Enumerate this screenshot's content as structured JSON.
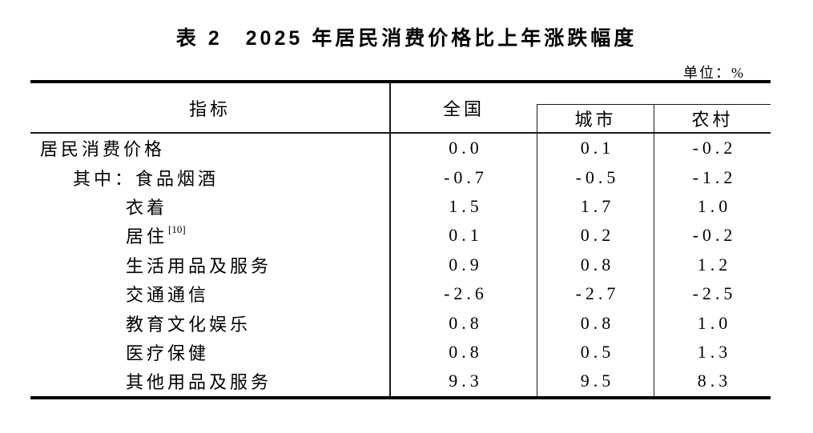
{
  "page": {
    "title": "表 2　2025 年居民消费价格比上年涨跌幅度",
    "unit_label": "单位：%"
  },
  "table": {
    "columns": {
      "indicator": "指标",
      "national": "全国",
      "city": "城市",
      "rural": "农村"
    },
    "rows": [
      {
        "label": "居民消费价格",
        "superscript": "",
        "indent": 0,
        "national": "0.0",
        "city": "0.1",
        "rural": "-0.2"
      },
      {
        "label": "其中：食品烟酒",
        "superscript": "",
        "indent": 1,
        "national": "-0.7",
        "city": "-0.5",
        "rural": "-1.2"
      },
      {
        "label": "衣着",
        "superscript": "",
        "indent": 2,
        "national": "1.5",
        "city": "1.7",
        "rural": "1.0"
      },
      {
        "label": "居住",
        "superscript": "[10]",
        "indent": 2,
        "national": "0.1",
        "city": "0.2",
        "rural": "-0.2"
      },
      {
        "label": "生活用品及服务",
        "superscript": "",
        "indent": 2,
        "national": "0.9",
        "city": "0.8",
        "rural": "1.2"
      },
      {
        "label": "交通通信",
        "superscript": "",
        "indent": 2,
        "national": "-2.6",
        "city": "-2.7",
        "rural": "-2.5"
      },
      {
        "label": "教育文化娱乐",
        "superscript": "",
        "indent": 2,
        "national": "0.8",
        "city": "0.8",
        "rural": "1.0"
      },
      {
        "label": "医疗保健",
        "superscript": "",
        "indent": 2,
        "national": "0.8",
        "city": "0.5",
        "rural": "1.3"
      },
      {
        "label": "其他用品及服务",
        "superscript": "",
        "indent": 2,
        "national": "9.3",
        "city": "9.5",
        "rural": "8.3"
      }
    ]
  },
  "colors": {
    "text": "#000000",
    "rule_thick": "#000000",
    "rule_thin": "#1a1a1a",
    "background": "#ffffff"
  }
}
